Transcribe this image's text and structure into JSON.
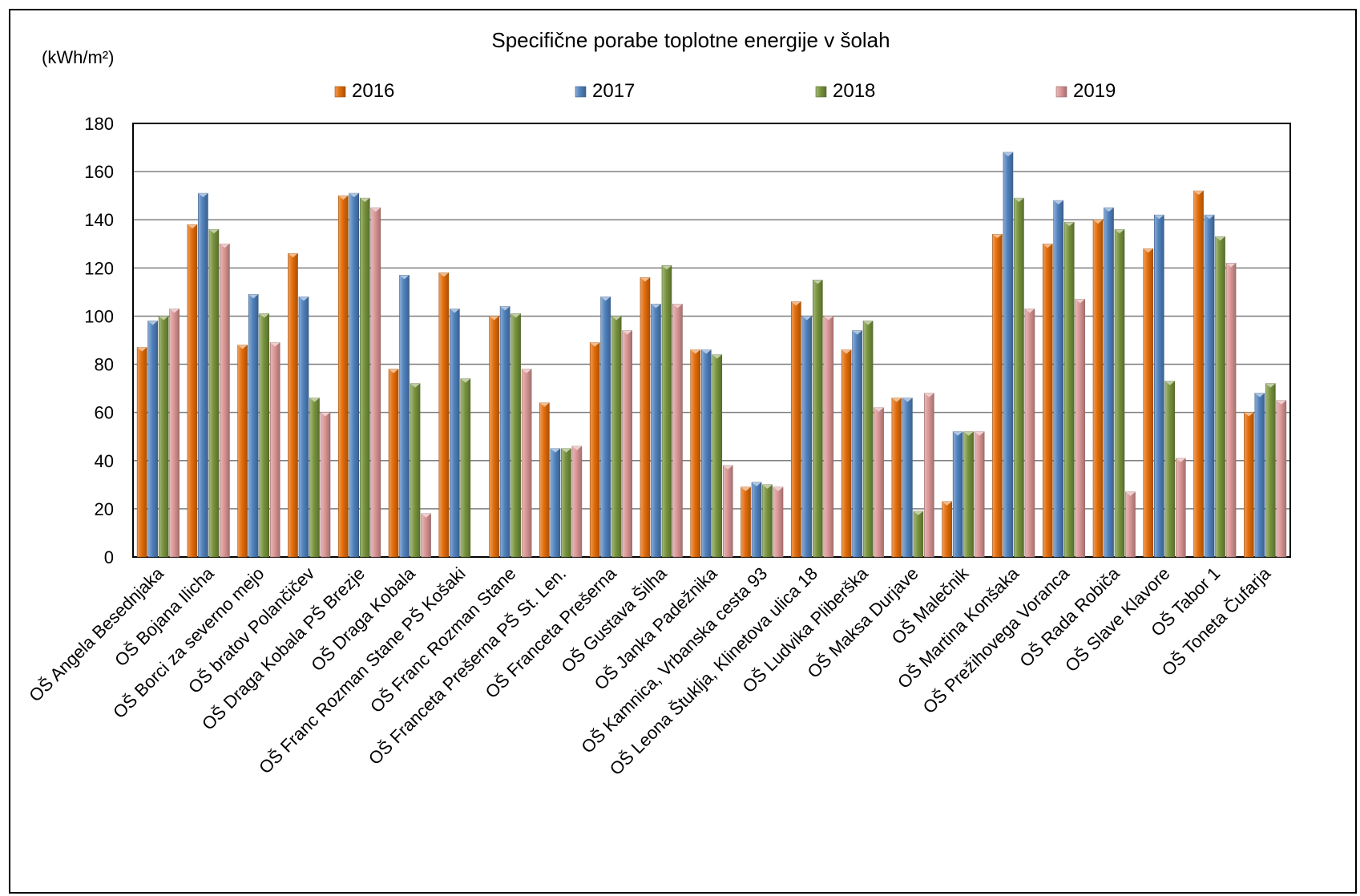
{
  "chart_data": {
    "type": "bar",
    "title": "Specifične porabe toplotne energije v šolah",
    "ylabel": "(kWh/m²)",
    "xlabel": "",
    "ylim": [
      0,
      180
    ],
    "yticks": [
      0,
      20,
      40,
      60,
      80,
      100,
      120,
      140,
      160,
      180
    ],
    "grid": true,
    "legend_position": "top",
    "categories": [
      "OŠ Angela Besednjaka",
      "OŠ Bojana Ilicha",
      "OŠ Borci za severno mejo",
      "OŠ bratov Polančičev",
      "OŠ Draga Kobala PŠ Brezje",
      "OŠ Draga Kobala",
      "OŠ Franc Rozman Stane PŠ Košaki",
      "OŠ Franc Rozman Stane",
      "OŠ Franceta Prešerna PŠ St. Len.",
      "OŠ Franceta Prešerna",
      "OŠ Gustava Šilha",
      "OŠ Janka Padežnika",
      "OŠ Kamnica, Vrbanska cesta 93",
      "OŠ Leona Štuklja, Klinetova ulica 18",
      "OŠ Ludvika Pliberška",
      "OŠ Maksa Durjave",
      "OŠ Malečnik",
      "OŠ Martina Konšaka",
      "OŠ Prežihovega Voranca",
      "OŠ Rada Robiča",
      "OŠ Slave Klavore",
      "OŠ Tabor 1",
      "OŠ Toneta Čufarja"
    ],
    "series": [
      {
        "name": "2016",
        "color": "#E36C09",
        "values": [
          87,
          138,
          88,
          126,
          150,
          78,
          118,
          100,
          64,
          89,
          116,
          86,
          29,
          106,
          86,
          66,
          23,
          134,
          130,
          140,
          128,
          152,
          60
        ]
      },
      {
        "name": "2017",
        "color": "#4F81BD",
        "values": [
          98,
          151,
          109,
          108,
          151,
          117,
          103,
          104,
          45,
          108,
          105,
          86,
          31,
          100,
          94,
          66,
          52,
          168,
          148,
          145,
          142,
          142,
          68
        ]
      },
      {
        "name": "2018",
        "color": "#77933C",
        "values": [
          100,
          136,
          101,
          66,
          149,
          72,
          74,
          101,
          45,
          100,
          121,
          84,
          30,
          115,
          98,
          19,
          52,
          149,
          139,
          136,
          73,
          133,
          72
        ]
      },
      {
        "name": "2019",
        "color": "#D99594",
        "values": [
          103,
          130,
          89,
          60,
          145,
          18,
          null,
          78,
          46,
          94,
          105,
          38,
          29,
          100,
          62,
          68,
          52,
          103,
          107,
          27,
          41,
          122,
          65
        ]
      }
    ]
  }
}
